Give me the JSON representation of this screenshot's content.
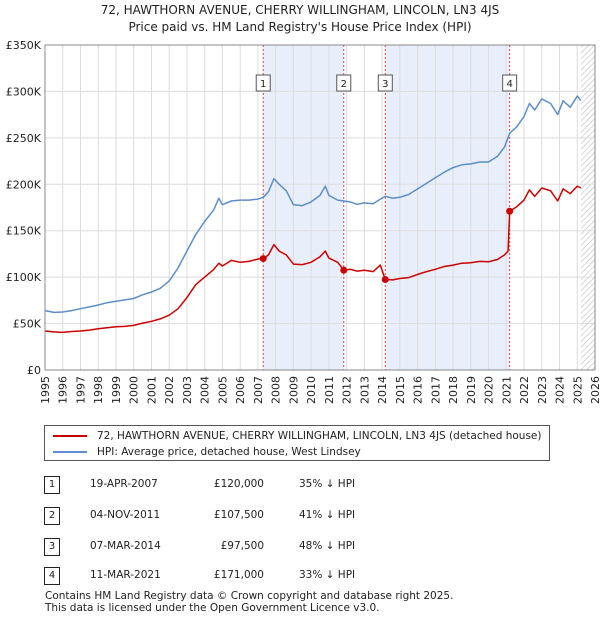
{
  "chart_data": {
    "type": "line",
    "title_line1": "72, HAWTHORN AVENUE, CHERRY WILLINGHAM, LINCOLN, LN3 4JS",
    "title_line2": "Price paid vs. HM Land Registry's House Price Index (HPI)",
    "xlim": [
      1995,
      2026
    ],
    "ylim": [
      0,
      350000
    ],
    "x_ticks": [
      "1995",
      "1996",
      "1997",
      "1998",
      "1999",
      "2000",
      "2001",
      "2002",
      "2003",
      "2004",
      "2005",
      "2006",
      "2007",
      "2008",
      "2009",
      "2010",
      "2011",
      "2012",
      "2013",
      "2014",
      "2015",
      "2016",
      "2017",
      "2018",
      "2019",
      "2020",
      "2021",
      "2022",
      "2023",
      "2024",
      "2025",
      "2026"
    ],
    "y_ticks": [
      {
        "value": 0,
        "label": "£0"
      },
      {
        "value": 50000,
        "label": "£50K"
      },
      {
        "value": 100000,
        "label": "£100K"
      },
      {
        "value": 150000,
        "label": "£150K"
      },
      {
        "value": 200000,
        "label": "£200K"
      },
      {
        "value": 250000,
        "label": "£250K"
      },
      {
        "value": 300000,
        "label": "£300K"
      },
      {
        "value": 350000,
        "label": "£350K"
      }
    ],
    "shaded_ranges": [
      [
        2007.3,
        2011.84
      ],
      [
        2014.18,
        2021.19
      ]
    ],
    "future_hatch_from": 2025.2,
    "series": [
      {
        "name": "72, HAWTHORN AVENUE, CHERRY WILLINGHAM, LINCOLN, LN3 4JS (detached house)",
        "color": "#cc0000",
        "points": [
          [
            1995.0,
            42000
          ],
          [
            1995.5,
            41000
          ],
          [
            1996.0,
            40500
          ],
          [
            1996.5,
            41500
          ],
          [
            1997.0,
            42000
          ],
          [
            1997.5,
            43000
          ],
          [
            1998.0,
            44500
          ],
          [
            1998.5,
            45500
          ],
          [
            1999.0,
            46500
          ],
          [
            1999.5,
            47000
          ],
          [
            2000.0,
            48000
          ],
          [
            2000.5,
            50500
          ],
          [
            2001.0,
            52500
          ],
          [
            2001.5,
            55000
          ],
          [
            2002.0,
            59000
          ],
          [
            2002.5,
            66000
          ],
          [
            2003.0,
            78000
          ],
          [
            2003.5,
            92000
          ],
          [
            2004.0,
            100000
          ],
          [
            2004.5,
            108000
          ],
          [
            2004.8,
            115000
          ],
          [
            2005.0,
            112000
          ],
          [
            2005.5,
            118000
          ],
          [
            2006.0,
            116000
          ],
          [
            2006.5,
            117000
          ],
          [
            2007.0,
            119500
          ],
          [
            2007.3,
            120000
          ],
          [
            2007.6,
            124000
          ],
          [
            2007.9,
            135000
          ],
          [
            2008.2,
            128000
          ],
          [
            2008.6,
            124000
          ],
          [
            2009.0,
            114000
          ],
          [
            2009.5,
            113500
          ],
          [
            2010.0,
            116000
          ],
          [
            2010.5,
            122000
          ],
          [
            2010.8,
            128000
          ],
          [
            2011.0,
            120500
          ],
          [
            2011.5,
            116000
          ],
          [
            2011.84,
            107500
          ],
          [
            2012.2,
            108500
          ],
          [
            2012.6,
            106500
          ],
          [
            2013.0,
            107500
          ],
          [
            2013.5,
            106000
          ],
          [
            2013.9,
            113000
          ],
          [
            2014.18,
            97500
          ],
          [
            2014.6,
            97000
          ],
          [
            2015.0,
            98500
          ],
          [
            2015.5,
            99500
          ],
          [
            2016.0,
            103000
          ],
          [
            2016.5,
            106000
          ],
          [
            2017.0,
            108500
          ],
          [
            2017.5,
            111500
          ],
          [
            2018.0,
            113000
          ],
          [
            2018.5,
            115000
          ],
          [
            2019.0,
            115500
          ],
          [
            2019.5,
            117000
          ],
          [
            2020.0,
            116500
          ],
          [
            2020.5,
            119000
          ],
          [
            2020.9,
            124000
          ],
          [
            2021.1,
            128000
          ],
          [
            2021.19,
            171000
          ],
          [
            2021.6,
            176000
          ],
          [
            2022.0,
            183000
          ],
          [
            2022.3,
            194000
          ],
          [
            2022.6,
            187000
          ],
          [
            2023.0,
            196000
          ],
          [
            2023.5,
            193000
          ],
          [
            2023.9,
            182000
          ],
          [
            2024.2,
            195000
          ],
          [
            2024.6,
            190000
          ],
          [
            2025.0,
            198000
          ],
          [
            2025.2,
            196000
          ]
        ]
      },
      {
        "name": "HPI: Average price, detached house, West Lindsey",
        "color": "#5b8fc9",
        "points": [
          [
            1995.0,
            64000
          ],
          [
            1995.5,
            62000
          ],
          [
            1996.0,
            62500
          ],
          [
            1996.5,
            64000
          ],
          [
            1997.0,
            66000
          ],
          [
            1997.5,
            68000
          ],
          [
            1998.0,
            70000
          ],
          [
            1998.5,
            72500
          ],
          [
            1999.0,
            74000
          ],
          [
            1999.5,
            75500
          ],
          [
            2000.0,
            77000
          ],
          [
            2000.5,
            81000
          ],
          [
            2001.0,
            84000
          ],
          [
            2001.5,
            88000
          ],
          [
            2002.0,
            96000
          ],
          [
            2002.5,
            110000
          ],
          [
            2003.0,
            128000
          ],
          [
            2003.5,
            146000
          ],
          [
            2004.0,
            160000
          ],
          [
            2004.5,
            172000
          ],
          [
            2004.8,
            185000
          ],
          [
            2005.0,
            178000
          ],
          [
            2005.5,
            182000
          ],
          [
            2006.0,
            183000
          ],
          [
            2006.5,
            183000
          ],
          [
            2007.0,
            184000
          ],
          [
            2007.3,
            186000
          ],
          [
            2007.6,
            192000
          ],
          [
            2007.9,
            206000
          ],
          [
            2008.2,
            200000
          ],
          [
            2008.6,
            193000
          ],
          [
            2009.0,
            178000
          ],
          [
            2009.5,
            177000
          ],
          [
            2010.0,
            181000
          ],
          [
            2010.5,
            188000
          ],
          [
            2010.8,
            198000
          ],
          [
            2011.0,
            188000
          ],
          [
            2011.5,
            183000
          ],
          [
            2011.84,
            182000
          ],
          [
            2012.2,
            181000
          ],
          [
            2012.6,
            178500
          ],
          [
            2013.0,
            180000
          ],
          [
            2013.5,
            179000
          ],
          [
            2013.9,
            184000
          ],
          [
            2014.18,
            187000
          ],
          [
            2014.6,
            185000
          ],
          [
            2015.0,
            186000
          ],
          [
            2015.5,
            189000
          ],
          [
            2016.0,
            195000
          ],
          [
            2016.5,
            201000
          ],
          [
            2017.0,
            207000
          ],
          [
            2017.5,
            213000
          ],
          [
            2018.0,
            218000
          ],
          [
            2018.5,
            221000
          ],
          [
            2019.0,
            222000
          ],
          [
            2019.5,
            224000
          ],
          [
            2020.0,
            224000
          ],
          [
            2020.5,
            230000
          ],
          [
            2020.9,
            240000
          ],
          [
            2021.19,
            255000
          ],
          [
            2021.6,
            262000
          ],
          [
            2022.0,
            273000
          ],
          [
            2022.3,
            287000
          ],
          [
            2022.6,
            280000
          ],
          [
            2023.0,
            292000
          ],
          [
            2023.5,
            287000
          ],
          [
            2023.9,
            275000
          ],
          [
            2024.2,
            290000
          ],
          [
            2024.6,
            283000
          ],
          [
            2025.0,
            295000
          ],
          [
            2025.2,
            290000
          ]
        ]
      }
    ],
    "sale_markers": [
      {
        "label": "1",
        "x": 2007.3,
        "y": 120000
      },
      {
        "label": "2",
        "x": 2011.84,
        "y": 107500
      },
      {
        "label": "3",
        "x": 2014.18,
        "y": 97500
      },
      {
        "label": "4",
        "x": 2021.19,
        "y": 171000
      }
    ]
  },
  "legend": {
    "property_label": "72, HAWTHORN AVENUE, CHERRY WILLINGHAM, LINCOLN, LN3 4JS (detached house)",
    "hpi_label": "HPI: Average price, detached house, West Lindsey",
    "property_color": "#cc0000",
    "hpi_color": "#5b8fc9"
  },
  "transactions": [
    {
      "num": "1",
      "date": "19-APR-2007",
      "price": "£120,000",
      "hpi": "35% ↓ HPI"
    },
    {
      "num": "2",
      "date": "04-NOV-2011",
      "price": "£107,500",
      "hpi": "41% ↓ HPI"
    },
    {
      "num": "3",
      "date": "07-MAR-2014",
      "price": "£97,500",
      "hpi": "48% ↓ HPI"
    },
    {
      "num": "4",
      "date": "11-MAR-2021",
      "price": "£171,000",
      "hpi": "33% ↓ HPI"
    }
  ],
  "footer": {
    "line1": "Contains HM Land Registry data © Crown copyright and database right 2025.",
    "line2": "This data is licensed under the Open Government Licence v3.0."
  }
}
